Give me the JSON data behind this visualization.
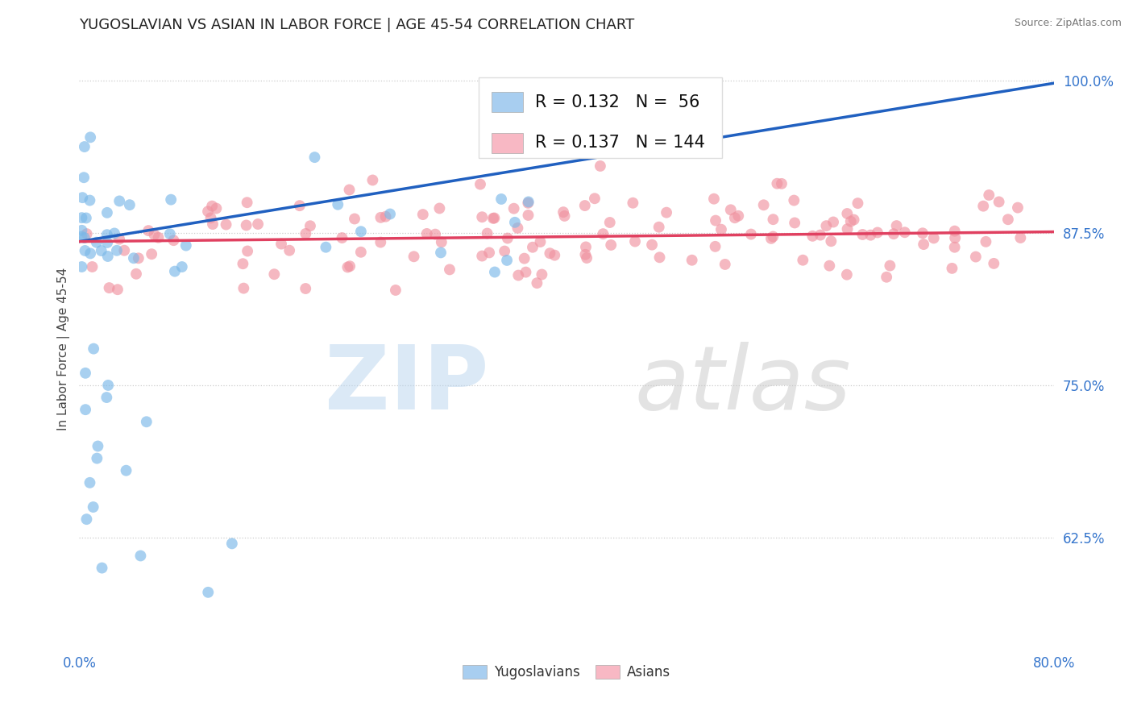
{
  "title": "YUGOSLAVIAN VS ASIAN IN LABOR FORCE | AGE 45-54 CORRELATION CHART",
  "source": "Source: ZipAtlas.com",
  "ylabel": "In Labor Force | Age 45-54",
  "xlim": [
    0.0,
    0.8
  ],
  "ylim": [
    0.535,
    1.025
  ],
  "ytick_labels": [
    "62.5%",
    "75.0%",
    "87.5%",
    "100.0%"
  ],
  "ytick_vals": [
    0.625,
    0.75,
    0.875,
    1.0
  ],
  "xtick_labels": [
    "0.0%",
    "80.0%"
  ],
  "xtick_vals": [
    0.0,
    0.8
  ],
  "yugo_color": "#7ab8e8",
  "asian_color": "#f093a0",
  "trend_yugo_color": "#2060c0",
  "trend_asian_color": "#e04060",
  "dashed_line_color": "#6090d0",
  "legend_yugo_color": "#a8cef0",
  "legend_asian_color": "#f8b8c4",
  "background_color": "#ffffff",
  "title_fontsize": 13,
  "axis_label_fontsize": 11,
  "tick_fontsize": 12,
  "legend_fontsize": 15,
  "yugo_R": 0.132,
  "yugo_N": 56,
  "asian_R": 0.137,
  "asian_N": 144,
  "trend_yugo_x0": 0.0,
  "trend_yugo_y0": 0.868,
  "trend_yugo_x1": 0.8,
  "trend_yugo_y1": 0.998,
  "trend_asian_x0": 0.0,
  "trend_asian_y0": 0.868,
  "trend_asian_x1": 0.8,
  "trend_asian_y1": 0.876,
  "watermark_zip_color": "#b8d4ee",
  "watermark_atlas_color": "#c8c8c8"
}
